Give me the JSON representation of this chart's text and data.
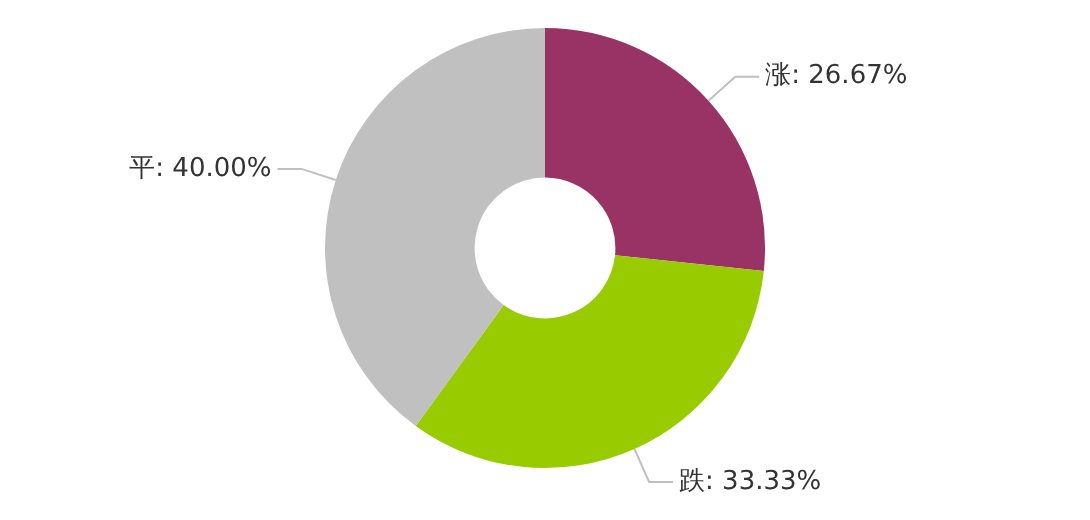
{
  "chart_data": {
    "type": "donut",
    "categories": [
      "涨",
      "跌",
      "平"
    ],
    "values": [
      26.67,
      33.33,
      40.0
    ],
    "colors": [
      "#993366",
      "#99cc00",
      "#c0c0c0"
    ],
    "value_labels": [
      "26.67%",
      "33.33%",
      "40.00%"
    ],
    "legend": false
  }
}
